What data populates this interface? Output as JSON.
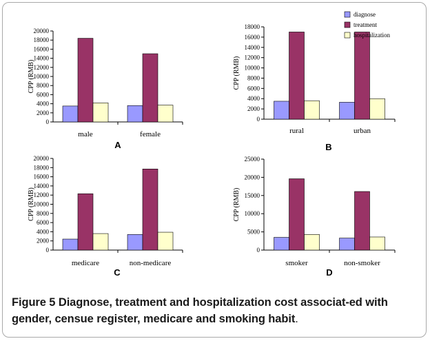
{
  "caption": {
    "label": "Figure 5",
    "text": "Diagnose, treatment and hospitalization cost associat-ed with gender, censue register, medicare and smoking habit",
    "end": "."
  },
  "colors": {
    "diagnose": "#9999ff",
    "treatment": "#993366",
    "hospitalization": "#ffffcc"
  },
  "legend_labels": [
    "diagnose",
    "treatment",
    "hospitalization"
  ],
  "chart_data": [
    {
      "type": "bar",
      "panel": "A",
      "ylabel": "CPP (RMB)",
      "ylim": [
        0,
        20000
      ],
      "yticks": [
        0,
        2000,
        4000,
        6000,
        8000,
        10000,
        12000,
        14000,
        16000,
        18000,
        20000
      ],
      "categories": [
        "male",
        "female"
      ],
      "series": [
        {
          "name": "diagnose",
          "values": [
            3500,
            3600
          ]
        },
        {
          "name": "treatment",
          "values": [
            18400,
            15000
          ]
        },
        {
          "name": "hospitalization",
          "values": [
            4200,
            3700
          ]
        }
      ],
      "legend": "none"
    },
    {
      "type": "bar",
      "panel": "B",
      "ylabel": "CPP (RMB)",
      "ylim": [
        0,
        18000
      ],
      "yticks": [
        0,
        2000,
        4000,
        6000,
        8000,
        10000,
        12000,
        14000,
        16000,
        18000
      ],
      "categories": [
        "rural",
        "urban"
      ],
      "series": [
        {
          "name": "diagnose",
          "values": [
            3500,
            3300
          ]
        },
        {
          "name": "treatment",
          "values": [
            17000,
            17000
          ]
        },
        {
          "name": "hospitalization",
          "values": [
            3600,
            4000
          ]
        }
      ],
      "legend": "top-right"
    },
    {
      "type": "bar",
      "panel": "C",
      "ylabel": "CPP (RMB)",
      "ylim": [
        0,
        20000
      ],
      "yticks": [
        0,
        2000,
        4000,
        6000,
        8000,
        10000,
        12000,
        14000,
        16000,
        18000,
        20000
      ],
      "categories": [
        "medicare",
        "non-medicare"
      ],
      "series": [
        {
          "name": "diagnose",
          "values": [
            2400,
            3400
          ]
        },
        {
          "name": "treatment",
          "values": [
            12300,
            17700
          ]
        },
        {
          "name": "hospitalization",
          "values": [
            3600,
            3900
          ]
        }
      ],
      "legend": "none"
    },
    {
      "type": "bar",
      "panel": "D",
      "ylabel": "CPP (RMB)",
      "ylim": [
        0,
        25000
      ],
      "yticks": [
        0,
        5000,
        10000,
        15000,
        20000,
        25000
      ],
      "categories": [
        "smoker",
        "non-smoker"
      ],
      "series": [
        {
          "name": "diagnose",
          "values": [
            3500,
            3300
          ]
        },
        {
          "name": "treatment",
          "values": [
            19600,
            16100
          ]
        },
        {
          "name": "hospitalization",
          "values": [
            4300,
            3600
          ]
        }
      ],
      "legend": "none"
    }
  ]
}
